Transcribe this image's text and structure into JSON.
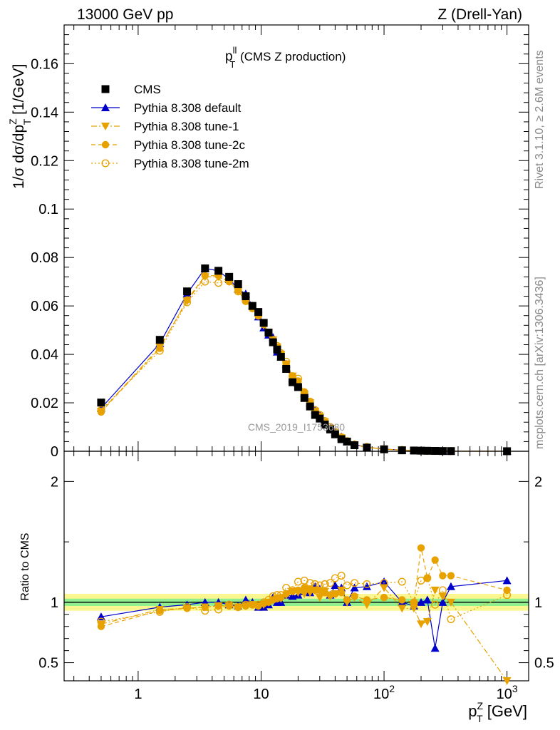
{
  "header": {
    "left": "13000 GeV pp",
    "right": "Z (Drell-Yan)"
  },
  "side": {
    "rivet": "Rivet 3.1.10, ≥ 2.6M events",
    "mcplots": "mcplots.cern.ch [arXiv:1306.3436]"
  },
  "chart_data": {
    "type": "scatter",
    "title": "p_T^ll (CMS Z production)",
    "title_main": "p",
    "title_sup": "ll",
    "title_sub": "T",
    "title_rest": " (CMS Z production)",
    "watermark": "CMS_2019_I1753680",
    "xscale": "log",
    "xlim": [
      0.25,
      1500
    ],
    "xticks": [
      {
        "v": 1,
        "base": "1",
        "exp": ""
      },
      {
        "v": 10,
        "base": "10",
        "exp": ""
      },
      {
        "v": 100,
        "base": "10",
        "exp": "2"
      },
      {
        "v": 1000,
        "base": "10",
        "exp": "3"
      }
    ],
    "xlabel": {
      "main": "p",
      "sup": "Z",
      "sub": "T",
      "unit": " [GeV]"
    },
    "main": {
      "ylabel": "1/σ dσ/dp_T^Z [1/GeV]",
      "ylabel_parts": {
        "a": "1/σ dσ/dp",
        "sup": "Z",
        "sub": "T",
        "b": " [1/GeV]"
      },
      "ylim": [
        0,
        0.176
      ],
      "yticks": [
        "0",
        "0.02",
        "0.04",
        "0.06",
        "0.08",
        "0.1",
        "0.12",
        "0.14",
        "0.16"
      ]
    },
    "ratio": {
      "ylabel": "Ratio to CMS",
      "ylim": [
        0.35,
        2.25
      ],
      "yticks": [
        "0.5",
        "1",
        "2"
      ],
      "band_inner": 0.03,
      "band_outer": 0.07
    },
    "legend_position": "top-left",
    "x": [
      0.5,
      1.5,
      2.5,
      3.5,
      4.5,
      5.5,
      6.5,
      7.5,
      8.5,
      9.5,
      10.5,
      11.5,
      12.5,
      13.5,
      14.5,
      16,
      18,
      20,
      22.5,
      25,
      27.5,
      30,
      33,
      36.5,
      40,
      45,
      50,
      57.5,
      72.5,
      100,
      140,
      175,
      200,
      225,
      260,
      300,
      350,
      1000
    ],
    "series": [
      {
        "name": "CMS",
        "color": "#000000",
        "marker": "square",
        "line": "none",
        "values": [
          0.0201,
          0.046,
          0.066,
          0.0755,
          0.0745,
          0.072,
          0.069,
          0.064,
          0.06,
          0.0575,
          0.053,
          0.049,
          0.045,
          0.042,
          0.039,
          0.034,
          0.0285,
          0.0265,
          0.022,
          0.0185,
          0.015,
          0.0135,
          0.011,
          0.009,
          0.007,
          0.005,
          0.004,
          0.0025,
          0.0015,
          0.0008,
          0.0004,
          0.0003,
          0.00025,
          0.0002,
          0.00015,
          0.0001,
          8e-05,
          2e-05
        ],
        "ratio": [
          1.0,
          1.0,
          1.0,
          1.0,
          1.0,
          1.0,
          1.0,
          1.0,
          1.0,
          1.0,
          1.0,
          1.0,
          1.0,
          1.0,
          1.0,
          1.0,
          1.0,
          1.0,
          1.0,
          1.0,
          1.0,
          1.0,
          1.0,
          1.0,
          1.0,
          1.0,
          1.0,
          1.0,
          1.0,
          1.0,
          1.0,
          1.0,
          1.0,
          1.0,
          1.0,
          1.0,
          1.0,
          1.0
        ]
      },
      {
        "name": "Pythia 8.308 default",
        "color": "#0000cc",
        "marker": "triangle-up",
        "line": "solid",
        "values": [
          0.0178,
          0.0445,
          0.065,
          0.0755,
          0.0745,
          0.071,
          0.067,
          0.065,
          0.06,
          0.0555,
          0.051,
          0.048,
          0.047,
          0.041,
          0.039,
          0.036,
          0.03,
          0.028,
          0.024,
          0.02,
          0.017,
          0.015,
          0.012,
          0.0095,
          0.008,
          0.006,
          0.004,
          0.0028,
          0.0017,
          0.0009,
          0.0005,
          0.0003,
          0.0002,
          0.00015,
          0.0001,
          8e-05,
          5e-05,
          2e-05
        ],
        "ratio": [
          0.88,
          0.96,
          0.98,
          1.0,
          1.0,
          0.98,
          0.97,
          1.02,
          1.0,
          0.96,
          0.96,
          0.98,
          1.04,
          1.0,
          1.0,
          1.06,
          1.05,
          1.06,
          1.09,
          1.08,
          1.13,
          1.11,
          1.09,
          1.06,
          1.14,
          1.12,
          1.0,
          1.12,
          1.13,
          1.17,
          1.0,
          0.97,
          1.0,
          1.02,
          0.62,
          1.0,
          1.13,
          1.18
        ]
      },
      {
        "name": "Pythia 8.308 tune-1",
        "color": "#e8a200",
        "marker": "triangle-down",
        "line": "dashdot",
        "values": [
          0.0165,
          0.043,
          0.062,
          0.072,
          0.072,
          0.07,
          0.066,
          0.062,
          0.059,
          0.056,
          0.052,
          0.049,
          0.046,
          0.043,
          0.04,
          0.036,
          0.031,
          0.0285,
          0.0235,
          0.02,
          0.0165,
          0.014,
          0.012,
          0.0095,
          0.0075,
          0.0055,
          0.004,
          0.0026,
          0.0016,
          0.0009,
          0.0004,
          0.00028,
          0.00022,
          0.00018,
          0.00015,
          0.0001,
          6e-05,
          1e-05
        ],
        "ratio": [
          0.82,
          0.94,
          0.95,
          0.96,
          0.97,
          0.97,
          0.96,
          0.97,
          0.98,
          0.97,
          0.98,
          1.0,
          1.02,
          1.03,
          1.03,
          1.06,
          1.09,
          1.08,
          1.07,
          1.08,
          1.1,
          1.04,
          1.09,
          1.05,
          1.07,
          1.1,
          1.0,
          1.04,
          0.98,
          1.12,
          0.95,
          0.95,
          0.82,
          0.84,
          1.1,
          1.05,
          1.0,
          0.35
        ]
      },
      {
        "name": "Pythia 8.308 tune-2c",
        "color": "#e8a200",
        "marker": "circle",
        "line": "dashed",
        "values": [
          0.0162,
          0.0425,
          0.0625,
          0.0725,
          0.0725,
          0.07,
          0.0665,
          0.062,
          0.059,
          0.056,
          0.0525,
          0.049,
          0.046,
          0.043,
          0.04,
          0.036,
          0.031,
          0.029,
          0.0245,
          0.0205,
          0.0165,
          0.0145,
          0.012,
          0.0095,
          0.0075,
          0.0055,
          0.004,
          0.0026,
          0.0016,
          0.0009,
          0.0004,
          0.0003,
          0.00035,
          0.00025,
          0.0002,
          0.00012,
          6e-05,
          2e-05
        ],
        "ratio": [
          0.8,
          0.93,
          0.95,
          0.96,
          0.97,
          0.97,
          0.96,
          0.97,
          0.98,
          0.97,
          0.99,
          1.0,
          1.02,
          1.03,
          1.04,
          1.07,
          1.09,
          1.1,
          1.12,
          1.11,
          1.1,
          1.1,
          1.08,
          1.06,
          1.07,
          1.08,
          1.02,
          1.05,
          1.02,
          1.04,
          1.02,
          1.0,
          1.45,
          1.2,
          1.35,
          1.22,
          1.22,
          1.1
        ]
      },
      {
        "name": "Pythia 8.308 tune-2m",
        "color": "#e8a200",
        "marker": "circle-open",
        "line": "dotted",
        "values": [
          0.017,
          0.0415,
          0.0615,
          0.07,
          0.0695,
          0.0705,
          0.066,
          0.062,
          0.059,
          0.056,
          0.0525,
          0.049,
          0.046,
          0.0435,
          0.0405,
          0.037,
          0.031,
          0.03,
          0.024,
          0.0205,
          0.017,
          0.015,
          0.0125,
          0.01,
          0.008,
          0.0058,
          0.0042,
          0.0028,
          0.0018,
          0.0009,
          0.0005,
          0.0003,
          0.0002,
          0.00015,
          0.0001,
          8e-05,
          5e-05,
          2e-05
        ],
        "ratio": [
          0.84,
          0.92,
          0.96,
          0.93,
          0.94,
          0.98,
          0.96,
          0.98,
          0.98,
          0.98,
          1.0,
          1.02,
          1.05,
          1.06,
          1.06,
          1.12,
          1.1,
          1.17,
          1.18,
          1.16,
          1.15,
          1.14,
          1.15,
          1.16,
          1.2,
          1.22,
          1.14,
          1.16,
          1.15,
          1.16,
          1.17,
          1.0,
          1.18,
          1.2,
          0.98,
          1.1,
          0.86,
          1.06
        ]
      }
    ]
  }
}
